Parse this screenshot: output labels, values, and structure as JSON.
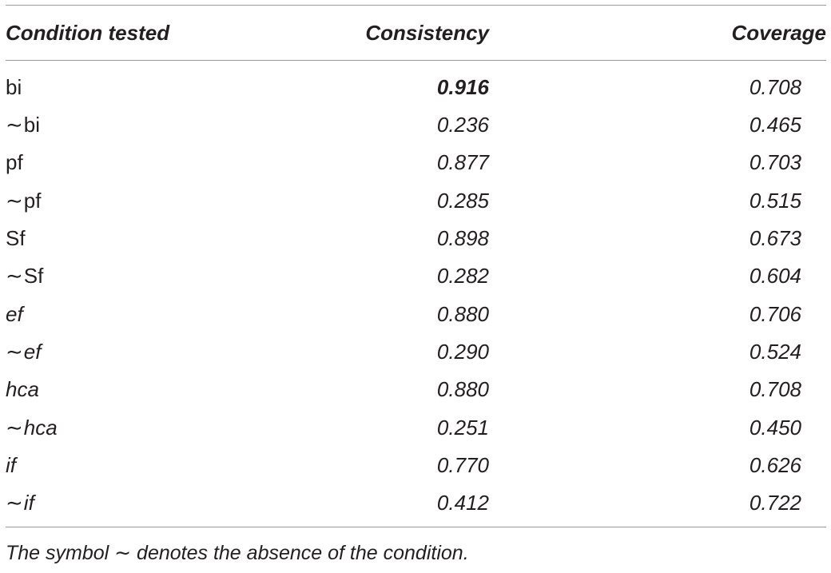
{
  "table": {
    "headers": {
      "condition": "Condition tested",
      "consistency": "Consistency",
      "coverage": "Coverage"
    },
    "rows": [
      {
        "tilde": "",
        "condition": "bi",
        "italic": false,
        "consistency": "0.916",
        "bold": true,
        "coverage": "0.708"
      },
      {
        "tilde": "∼",
        "condition": "bi",
        "italic": false,
        "consistency": "0.236",
        "bold": false,
        "coverage": "0.465"
      },
      {
        "tilde": "",
        "condition": "pf",
        "italic": false,
        "consistency": "0.877",
        "bold": false,
        "coverage": "0.703"
      },
      {
        "tilde": "∼",
        "condition": "pf",
        "italic": false,
        "consistency": "0.285",
        "bold": false,
        "coverage": "0.515"
      },
      {
        "tilde": "",
        "condition": "Sf",
        "italic": false,
        "consistency": "0.898",
        "bold": false,
        "coverage": "0.673"
      },
      {
        "tilde": "∼",
        "condition": "Sf",
        "italic": false,
        "consistency": "0.282",
        "bold": false,
        "coverage": "0.604"
      },
      {
        "tilde": "",
        "condition": "ef",
        "italic": true,
        "consistency": "0.880",
        "bold": false,
        "coverage": "0.706"
      },
      {
        "tilde": "∼",
        "condition": "ef",
        "italic": true,
        "consistency": "0.290",
        "bold": false,
        "coverage": "0.524"
      },
      {
        "tilde": "",
        "condition": "hca",
        "italic": true,
        "consistency": "0.880",
        "bold": false,
        "coverage": "0.708"
      },
      {
        "tilde": "∼",
        "condition": "hca",
        "italic": true,
        "consistency": "0.251",
        "bold": false,
        "coverage": "0.450"
      },
      {
        "tilde": "",
        "condition": "if",
        "italic": true,
        "consistency": "0.770",
        "bold": false,
        "coverage": "0.626"
      },
      {
        "tilde": "∼",
        "condition": "if",
        "italic": true,
        "consistency": "0.412",
        "bold": false,
        "coverage": "0.722"
      }
    ]
  },
  "footnote": "The symbol ∼ denotes the absence of the condition."
}
